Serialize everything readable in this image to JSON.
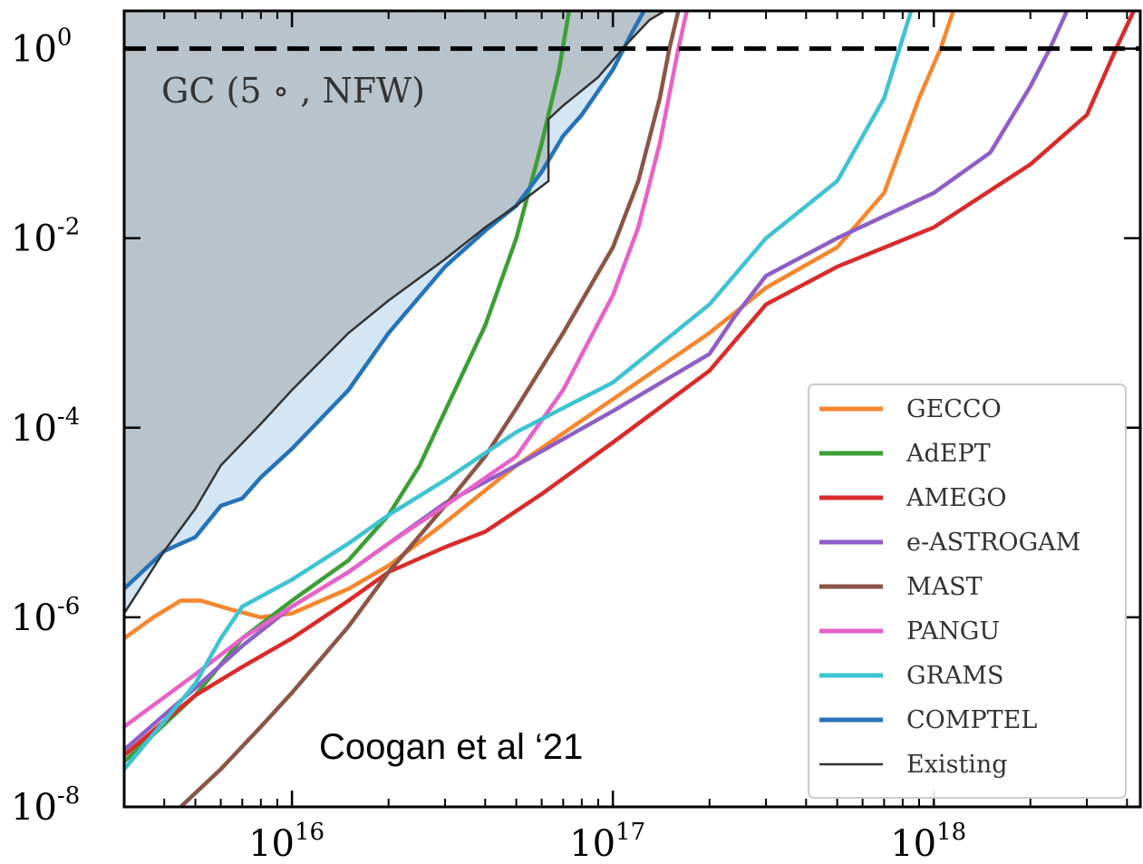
{
  "chart_data": {
    "type": "line",
    "title": "",
    "xlabel": "",
    "ylabel": "",
    "xscale": "log",
    "yscale": "log",
    "xlim": [
      3000000000000000.0,
      4.4e+18
    ],
    "ylim": [
      1e-08,
      2.5
    ],
    "x_ticks": [
      {
        "value": 1e+16,
        "base": "10",
        "exp": "16"
      },
      {
        "value": 1e+17,
        "base": "10",
        "exp": "17"
      },
      {
        "value": 1e+18,
        "base": "10",
        "exp": "18"
      }
    ],
    "y_ticks": [
      {
        "value": 1.0,
        "base": "10",
        "exp": "0"
      },
      {
        "value": 0.01,
        "base": "10",
        "exp": "-2"
      },
      {
        "value": 0.0001,
        "base": "10",
        "exp": "-4"
      },
      {
        "value": 1e-06,
        "base": "10",
        "exp": "-6"
      },
      {
        "value": 1e-08,
        "base": "10",
        "exp": "-8"
      }
    ],
    "grid": false,
    "legend_position": "bottom-right",
    "annotations": {
      "region_label": "GC (5 ∘ , NFW)",
      "credit": "Coogan et al ‘21"
    },
    "reference_line": {
      "y": 1,
      "style": "dashed",
      "color": "#000000"
    },
    "existing_region": {
      "name": "Existing",
      "color": "#333333",
      "fill": "#b8c3cb",
      "points": [
        [
          3000000000000000.0,
          1.1e-06
        ],
        [
          4000000000000000.0,
          5e-06
        ],
        [
          5000000000000000.0,
          1.4e-05
        ],
        [
          6000000000000000.0,
          4e-05
        ],
        [
          8000000000000000.0,
          0.00011
        ],
        [
          1e+16,
          0.00025
        ],
        [
          1.5e+16,
          0.001
        ],
        [
          2e+16,
          0.0022
        ],
        [
          3e+16,
          0.006
        ],
        [
          4e+16,
          0.013
        ],
        [
          5e+16,
          0.022
        ],
        [
          6.3e+16,
          0.04
        ],
        [
          6.3e+16,
          0.18
        ],
        [
          7e+16,
          0.25
        ],
        [
          9e+16,
          0.5
        ],
        [
          1.1e+17,
          1.1
        ],
        [
          1.3e+17,
          2.0
        ],
        [
          1.45e+17,
          2.5
        ]
      ]
    },
    "series": [
      {
        "name": "GECCO",
        "color": "#f7862d",
        "points": [
          [
            3000000000000000.0,
            6e-07
          ],
          [
            3700000000000000.0,
            1e-06
          ],
          [
            4500000000000000.0,
            1.5e-06
          ],
          [
            5200000000000000.0,
            1.5e-06
          ],
          [
            6500000000000000.0,
            1.2e-06
          ],
          [
            8000000000000000.0,
            1e-06
          ],
          [
            1e+16,
            1.1e-06
          ],
          [
            1.5e+16,
            2e-06
          ],
          [
            2e+16,
            3.5e-06
          ],
          [
            3e+16,
            1e-05
          ],
          [
            5e+16,
            4e-05
          ],
          [
            1e+17,
            0.0002
          ],
          [
            2e+17,
            0.001
          ],
          [
            3e+17,
            0.003
          ],
          [
            5e+17,
            0.008
          ],
          [
            7e+17,
            0.03
          ],
          [
            9e+17,
            0.3
          ],
          [
            1.05e+18,
            1.0
          ],
          [
            1.15e+18,
            2.5
          ]
        ]
      },
      {
        "name": "AdEPT",
        "color": "#3b9f36",
        "points": [
          [
            3000000000000000.0,
            3e-08
          ],
          [
            5000000000000000.0,
            1.5e-07
          ],
          [
            7000000000000000.0,
            6e-07
          ],
          [
            1e+16,
            1.5e-06
          ],
          [
            1.5e+16,
            4e-06
          ],
          [
            2e+16,
            1.2e-05
          ],
          [
            2.5e+16,
            4e-05
          ],
          [
            3e+16,
            0.00015
          ],
          [
            4e+16,
            0.0012
          ],
          [
            5e+16,
            0.01
          ],
          [
            6e+16,
            0.1
          ],
          [
            6.8e+16,
            0.6
          ],
          [
            7.3e+16,
            2.5
          ]
        ]
      },
      {
        "name": "AMEGO",
        "color": "#d92b2b",
        "points": [
          [
            3000000000000000.0,
            3.5e-08
          ],
          [
            4000000000000000.0,
            8e-08
          ],
          [
            5000000000000000.0,
            1.5e-07
          ],
          [
            7000000000000000.0,
            3e-07
          ],
          [
            1e+16,
            6e-07
          ],
          [
            1.5e+16,
            1.5e-06
          ],
          [
            2e+16,
            3e-06
          ],
          [
            3e+16,
            5.5e-06
          ],
          [
            4e+16,
            8e-06
          ],
          [
            6e+16,
            2e-05
          ],
          [
            1e+17,
            7e-05
          ],
          [
            2e+17,
            0.0004
          ],
          [
            3e+17,
            0.002
          ],
          [
            5e+17,
            0.005
          ],
          [
            1e+18,
            0.013
          ],
          [
            2e+18,
            0.06
          ],
          [
            3e+18,
            0.2
          ],
          [
            3.7e+18,
            1.0
          ],
          [
            4.2e+18,
            2.5
          ]
        ]
      },
      {
        "name": "e-ASTROGAM",
        "color": "#8e5fc6",
        "points": [
          [
            3000000000000000.0,
            4e-08
          ],
          [
            5000000000000000.0,
            1.8e-07
          ],
          [
            7000000000000000.0,
            5e-07
          ],
          [
            1e+16,
            1.3e-06
          ],
          [
            1.5e+16,
            3e-06
          ],
          [
            2e+16,
            6e-06
          ],
          [
            3e+16,
            1.6e-05
          ],
          [
            5e+16,
            4e-05
          ],
          [
            1e+17,
            0.00015
          ],
          [
            2e+17,
            0.0006
          ],
          [
            2.4e+17,
            0.0015
          ],
          [
            3e+17,
            0.004
          ],
          [
            5e+17,
            0.01
          ],
          [
            1e+18,
            0.03
          ],
          [
            1.5e+18,
            0.08
          ],
          [
            2e+18,
            0.4
          ],
          [
            2.3e+18,
            1.0
          ],
          [
            2.6e+18,
            2.5
          ]
        ]
      },
      {
        "name": "MAST",
        "color": "#8b5547",
        "points": [
          [
            4500000000000000.0,
            1e-08
          ],
          [
            6000000000000000.0,
            2.5e-08
          ],
          [
            8000000000000000.0,
            7e-08
          ],
          [
            1e+16,
            1.6e-07
          ],
          [
            1.5e+16,
            8e-07
          ],
          [
            2e+16,
            3e-06
          ],
          [
            3e+16,
            1.5e-05
          ],
          [
            4e+16,
            5e-05
          ],
          [
            5e+16,
            0.00016
          ],
          [
            7e+16,
            0.001
          ],
          [
            1e+17,
            0.008
          ],
          [
            1.2e+17,
            0.04
          ],
          [
            1.4e+17,
            0.3
          ],
          [
            1.5e+17,
            1.0
          ],
          [
            1.6e+17,
            2.5
          ]
        ]
      },
      {
        "name": "PANGU",
        "color": "#e762c8",
        "points": [
          [
            3000000000000000.0,
            7e-08
          ],
          [
            5000000000000000.0,
            2.5e-07
          ],
          [
            7000000000000000.0,
            6e-07
          ],
          [
            1e+16,
            1.3e-06
          ],
          [
            1.5e+16,
            3e-06
          ],
          [
            2e+16,
            6e-06
          ],
          [
            3e+16,
            1.5e-05
          ],
          [
            5e+16,
            5e-05
          ],
          [
            7e+16,
            0.00025
          ],
          [
            1e+17,
            0.0025
          ],
          [
            1.2e+17,
            0.013
          ],
          [
            1.4e+17,
            0.1
          ],
          [
            1.6e+17,
            1.0
          ],
          [
            1.7e+17,
            2.5
          ]
        ]
      },
      {
        "name": "GRAMS",
        "color": "#3ec3d2",
        "points": [
          [
            3000000000000000.0,
            2.5e-08
          ],
          [
            4000000000000000.0,
            8e-08
          ],
          [
            5000000000000000.0,
            2e-07
          ],
          [
            6000000000000000.0,
            6e-07
          ],
          [
            7000000000000000.0,
            1.3e-06
          ],
          [
            1e+16,
            2.5e-06
          ],
          [
            1.5e+16,
            6e-06
          ],
          [
            2e+16,
            1.2e-05
          ],
          [
            3e+16,
            2.8e-05
          ],
          [
            5e+16,
            9e-05
          ],
          [
            1e+17,
            0.0003
          ],
          [
            2e+17,
            0.002
          ],
          [
            3e+17,
            0.01
          ],
          [
            5e+17,
            0.04
          ],
          [
            7e+17,
            0.3
          ],
          [
            8.5e+17,
            2.5
          ]
        ]
      },
      {
        "name": "COMPTEL",
        "color": "#2673b8",
        "points": [
          [
            3000000000000000.0,
            2e-06
          ],
          [
            4000000000000000.0,
            5e-06
          ],
          [
            5000000000000000.0,
            7e-06
          ],
          [
            6000000000000000.0,
            1.5e-05
          ],
          [
            7000000000000000.0,
            1.8e-05
          ],
          [
            8000000000000000.0,
            3e-05
          ],
          [
            1e+16,
            6e-05
          ],
          [
            1.5e+16,
            0.00025
          ],
          [
            2e+16,
            0.001
          ],
          [
            3e+16,
            0.005
          ],
          [
            4e+16,
            0.012
          ],
          [
            5e+16,
            0.022
          ],
          [
            6e+16,
            0.05
          ],
          [
            7e+16,
            0.12
          ],
          [
            8e+16,
            0.2
          ],
          [
            1e+17,
            0.6
          ],
          [
            1.15e+17,
            1.5
          ],
          [
            1.25e+17,
            2.5
          ]
        ]
      },
      {
        "name": "Existing",
        "color": "#333333",
        "points": []
      }
    ]
  }
}
